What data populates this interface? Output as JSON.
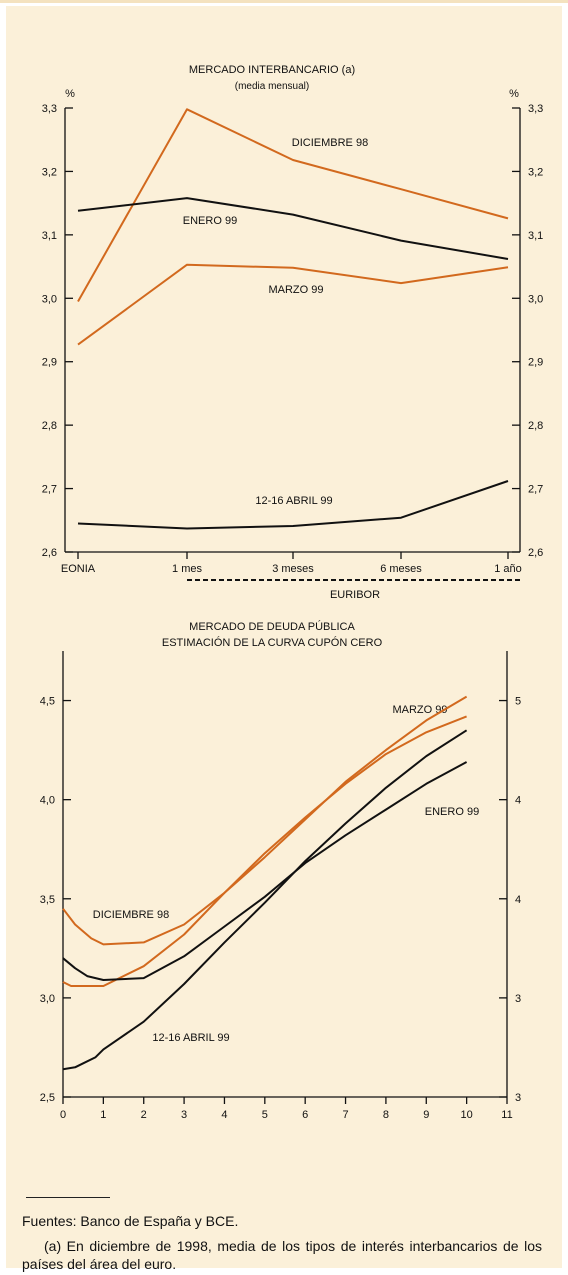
{
  "colors": {
    "black": "#111111",
    "orange": "#d2691e",
    "background": "#fbf0d9"
  },
  "chart_data": [
    {
      "type": "line",
      "title": "MERCADO INTERBANCARIO (a)",
      "subtitle": "(media mensual)",
      "ylabel_left": "%",
      "ylabel_right": "%",
      "categories": [
        "EONIA",
        "1 mes",
        "3 meses",
        "6 meses",
        "1 año"
      ],
      "group_label": "EURIBOR",
      "ylim": [
        2.6,
        3.3
      ],
      "yticks": [
        "2,6",
        "2,7",
        "2,8",
        "2,9",
        "3,0",
        "3,1",
        "3,2",
        "3,3"
      ],
      "series": [
        {
          "name": "DICIEMBRE 98",
          "color": "orange",
          "values": [
            2.995,
            3.298,
            3.218,
            3.172,
            3.126
          ]
        },
        {
          "name": "ENERO 99",
          "color": "black",
          "values": [
            3.138,
            3.158,
            3.132,
            3.091,
            3.062
          ]
        },
        {
          "name": "MARZO 99",
          "color": "orange",
          "values": [
            2.927,
            3.053,
            3.048,
            3.024,
            3.049
          ]
        },
        {
          "name": "12-16 ABRIL 99",
          "color": "black",
          "values": [
            2.645,
            2.637,
            2.641,
            2.654,
            2.712
          ]
        }
      ]
    },
    {
      "type": "line",
      "title": "MERCADO DE DEUDA PÚBLICA",
      "subtitle": "ESTIMACIÓN DE LA CURVA CUPÓN CERO",
      "xlim": [
        0,
        11
      ],
      "xticks": [
        "0",
        "1",
        "2",
        "3",
        "4",
        "5",
        "6",
        "7",
        "8",
        "9",
        "10",
        "11"
      ],
      "ylim": [
        2.5,
        4.75
      ],
      "yticks_left": [
        "2,5",
        "3,0",
        "3,5",
        "4,0",
        "4,5"
      ],
      "yticks_right": [
        "3",
        "3",
        "4",
        "4",
        "5"
      ],
      "series": [
        {
          "name": "DICIEMBRE 98",
          "color": "orange",
          "x": [
            0,
            0.3,
            0.7,
            1,
            2,
            3,
            4,
            5,
            6,
            7,
            8,
            9,
            10
          ],
          "values": [
            3.45,
            3.37,
            3.3,
            3.27,
            3.28,
            3.37,
            3.53,
            3.71,
            3.9,
            4.09,
            4.25,
            4.4,
            4.52
          ]
        },
        {
          "name": "",
          "color": "orange",
          "x": [
            0,
            0.2,
            0.5,
            1,
            2,
            3,
            4,
            5,
            6,
            7,
            8,
            9,
            10
          ],
          "values": [
            3.08,
            3.06,
            3.06,
            3.06,
            3.16,
            3.32,
            3.53,
            3.73,
            3.91,
            4.08,
            4.23,
            4.34,
            4.42
          ]
        },
        {
          "name": "ENERO 99",
          "color": "black",
          "x": [
            0,
            0.3,
            0.6,
            1,
            2,
            3,
            4,
            5,
            6,
            7,
            8,
            9,
            10
          ],
          "values": [
            3.2,
            3.15,
            3.11,
            3.09,
            3.1,
            3.21,
            3.36,
            3.51,
            3.68,
            3.82,
            3.95,
            4.08,
            4.19
          ]
        },
        {
          "name": "12-16 ABRIL 99",
          "color": "black",
          "x": [
            0,
            0.3,
            0.5,
            0.8,
            1,
            2,
            3,
            4,
            5,
            6,
            7,
            8,
            9,
            10
          ],
          "values": [
            2.64,
            2.65,
            2.67,
            2.7,
            2.74,
            2.88,
            3.07,
            3.28,
            3.48,
            3.69,
            3.88,
            4.06,
            4.22,
            4.35
          ]
        }
      ],
      "labels": {
        "marzo": "MARZO 99",
        "enero": "ENERO 99",
        "diciembre": "DICIEMBRE 98",
        "abril": "12-16 ABRIL 99"
      }
    }
  ],
  "notes": {
    "sources": "Fuentes:  Banco de España y BCE.",
    "footnote": "(a)   En diciembre de 1998, media de los tipos de interés interbancarios de los países del área del euro."
  }
}
